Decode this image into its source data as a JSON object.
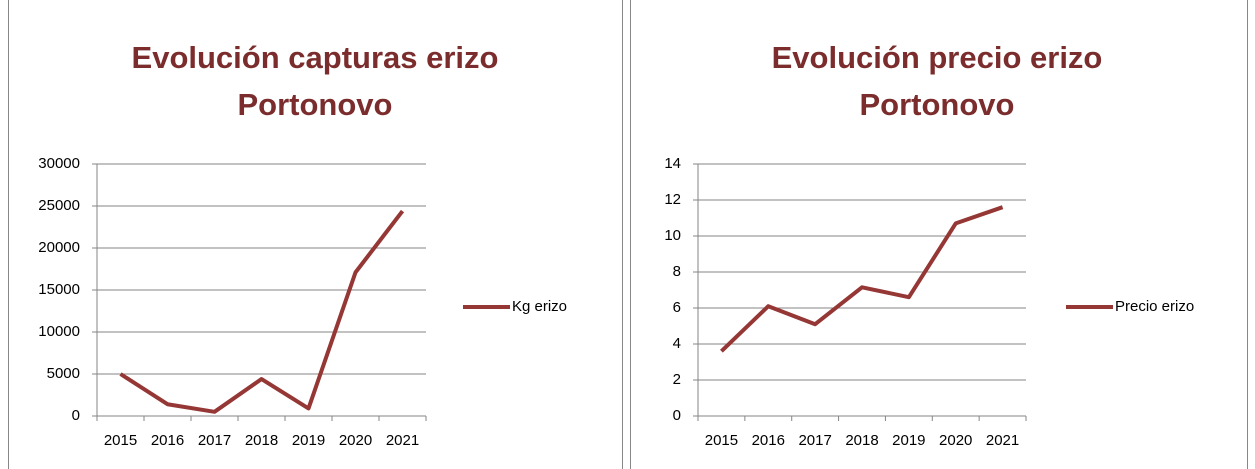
{
  "chart_data": [
    {
      "type": "line",
      "title": [
        "Evolución capturas erizo",
        "Portonovo"
      ],
      "categories": [
        "2015",
        "2016",
        "2017",
        "2018",
        "2019",
        "2020",
        "2021"
      ],
      "series": [
        {
          "name": "Kg erizo",
          "color": "#953735",
          "values": [
            5000,
            1400,
            500,
            4400,
            900,
            17100,
            24400
          ]
        }
      ],
      "ylim": [
        0,
        30000
      ],
      "yticks": [
        0,
        5000,
        10000,
        15000,
        20000,
        25000,
        30000
      ],
      "grid": true,
      "legend": "right"
    },
    {
      "type": "line",
      "title": [
        "Evolución precio erizo",
        "Portonovo"
      ],
      "categories": [
        "2015",
        "2016",
        "2017",
        "2018",
        "2019",
        "2020",
        "2021"
      ],
      "series": [
        {
          "name": "Precio erizo",
          "color": "#953735",
          "values": [
            3.6,
            6.1,
            5.1,
            7.15,
            6.6,
            10.7,
            11.6
          ]
        }
      ],
      "ylim": [
        0,
        14
      ],
      "yticks": [
        0,
        2,
        4,
        6,
        8,
        10,
        12,
        14
      ],
      "grid": true,
      "legend": "right"
    }
  ]
}
